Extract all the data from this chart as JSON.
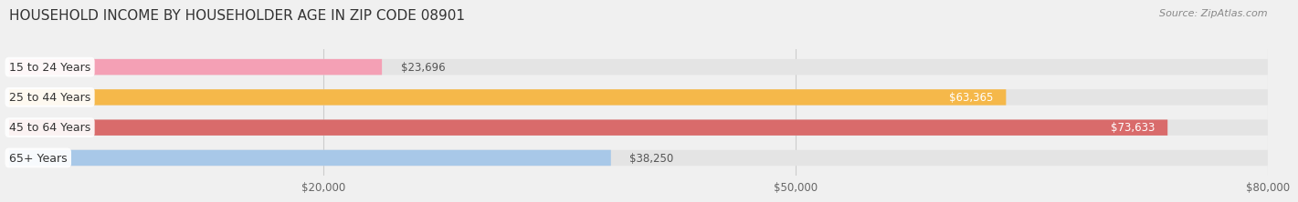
{
  "title": "HOUSEHOLD INCOME BY HOUSEHOLDER AGE IN ZIP CODE 08901",
  "source": "Source: ZipAtlas.com",
  "categories": [
    "15 to 24 Years",
    "25 to 44 Years",
    "45 to 64 Years",
    "65+ Years"
  ],
  "values": [
    23696,
    63365,
    73633,
    38250
  ],
  "bar_colors": [
    "#f4a0b5",
    "#f5b84a",
    "#d96b6b",
    "#a8c8e8"
  ],
  "label_colors": [
    "#444444",
    "#444444",
    "#444444",
    "#444444"
  ],
  "value_labels": [
    "$23,696",
    "$63,365",
    "$73,633",
    "$38,250"
  ],
  "value_inside": [
    false,
    true,
    true,
    false
  ],
  "xlim": [
    0,
    80000
  ],
  "xticks": [
    20000,
    50000,
    80000
  ],
  "xtick_labels": [
    "$20,000",
    "$50,000",
    "$80,000"
  ],
  "background_color": "#f0f0f0",
  "bar_background_color": "#e4e4e4",
  "title_fontsize": 11,
  "source_fontsize": 8,
  "label_fontsize": 9,
  "value_fontsize": 8.5,
  "tick_fontsize": 8.5,
  "bar_height": 0.52
}
